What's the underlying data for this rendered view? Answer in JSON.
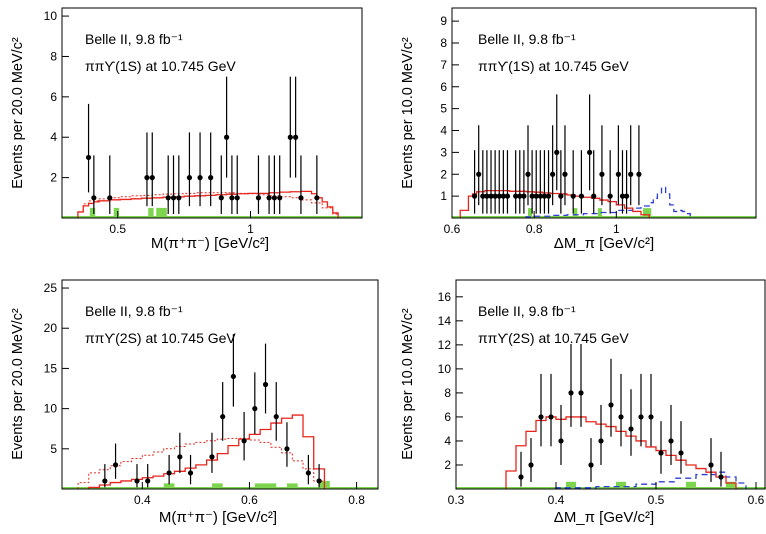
{
  "colors": {
    "axis": "#000000",
    "data": "#000000",
    "fit": "#e8251c",
    "dotted": "#e8251c",
    "dashed": "#2b3fd6",
    "bkg": "#7dd44f"
  },
  "chart_data": [
    {
      "id": "p1",
      "type": "histogram",
      "xlim": [
        0.29,
        1.42
      ],
      "ylim": [
        0,
        10.4
      ],
      "xticks": [
        0.5,
        1
      ],
      "xtick_labels": [
        "0.5",
        "1"
      ],
      "yticks": [
        2,
        4,
        6,
        8,
        10
      ],
      "ytick_labels": [
        "2",
        "4",
        "6",
        "8",
        "10"
      ],
      "xlabel": "M(π⁺π⁻) [GeV/c²]",
      "ylabel": "Events per 20.0 MeV/c²",
      "annotations": [
        "Belle II, 9.8 fb⁻¹",
        "ππϒ(1S) at 10.745 GeV"
      ],
      "data_points": [
        {
          "x": 0.39,
          "y": 3
        },
        {
          "x": 0.41,
          "y": 1
        },
        {
          "x": 0.47,
          "y": 1
        },
        {
          "x": 0.61,
          "y": 2
        },
        {
          "x": 0.63,
          "y": 2
        },
        {
          "x": 0.69,
          "y": 1
        },
        {
          "x": 0.71,
          "y": 1
        },
        {
          "x": 0.73,
          "y": 1
        },
        {
          "x": 0.77,
          "y": 2
        },
        {
          "x": 0.81,
          "y": 2
        },
        {
          "x": 0.85,
          "y": 2
        },
        {
          "x": 0.89,
          "y": 1
        },
        {
          "x": 0.91,
          "y": 4
        },
        {
          "x": 0.93,
          "y": 1
        },
        {
          "x": 0.95,
          "y": 1
        },
        {
          "x": 1.03,
          "y": 1
        },
        {
          "x": 1.07,
          "y": 1
        },
        {
          "x": 1.09,
          "y": 1
        },
        {
          "x": 1.11,
          "y": 1
        },
        {
          "x": 1.15,
          "y": 4
        },
        {
          "x": 1.17,
          "y": 4
        },
        {
          "x": 1.19,
          "y": 1
        },
        {
          "x": 1.25,
          "y": 1
        }
      ],
      "fit_step": {
        "edges": [
          0.35,
          0.37,
          0.39,
          0.41,
          0.43,
          0.47,
          0.51,
          0.55,
          0.59,
          0.63,
          0.67,
          0.71,
          0.75,
          0.79,
          0.83,
          0.87,
          0.91,
          0.95,
          0.99,
          1.03,
          1.07,
          1.11,
          1.15,
          1.19,
          1.23,
          1.25,
          1.27,
          1.29,
          1.31,
          1.33
        ],
        "values": [
          0.3,
          0.6,
          0.72,
          0.8,
          0.85,
          0.9,
          0.92,
          0.95,
          0.98,
          1.0,
          1.03,
          1.05,
          1.08,
          1.1,
          1.12,
          1.15,
          1.18,
          1.2,
          1.22,
          1.22,
          1.25,
          1.28,
          1.3,
          1.32,
          1.2,
          1.0,
          0.8,
          0.55,
          0.25
        ]
      },
      "dotted_step": {
        "edges": [
          0.35,
          0.37,
          0.39,
          0.43,
          0.47,
          0.51,
          0.55,
          0.59,
          0.63,
          0.67,
          0.71,
          0.75,
          0.79,
          0.83,
          0.87,
          0.91,
          0.95,
          0.99,
          1.03,
          1.07,
          1.11,
          1.15,
          1.19,
          1.23,
          1.27,
          1.31,
          1.33
        ],
        "values": [
          0.3,
          0.7,
          0.85,
          0.95,
          1.0,
          1.05,
          1.1,
          1.12,
          1.15,
          1.18,
          1.2,
          1.22,
          1.25,
          1.25,
          1.25,
          1.25,
          1.22,
          1.2,
          1.15,
          1.1,
          1.05,
          1.0,
          0.9,
          0.75,
          0.5,
          0.2
        ]
      },
      "bkg_boxes": [
        {
          "x0": 0.395,
          "x1": 0.415,
          "y": 0.5
        },
        {
          "x0": 0.485,
          "x1": 0.505,
          "y": 0.5
        },
        {
          "x0": 0.615,
          "x1": 0.635,
          "y": 0.5
        },
        {
          "x0": 0.645,
          "x1": 0.685,
          "y": 0.5
        }
      ]
    },
    {
      "id": "p2",
      "type": "histogram",
      "xlim": [
        0.6,
        1.34
      ],
      "ylim": [
        0,
        9.6
      ],
      "xticks": [
        0.6,
        0.8,
        1
      ],
      "xtick_labels": [
        "0.6",
        "0.8",
        "1"
      ],
      "yticks": [
        1,
        2,
        3,
        4,
        5,
        6,
        7,
        8,
        9
      ],
      "ytick_labels": [
        "1",
        "2",
        "3",
        "4",
        "5",
        "6",
        "7",
        "8",
        "9"
      ],
      "xlabel": "ΔM_π [GeV/c²]",
      "ylabel": "Events per 10.0 MeV/c²",
      "annotations": [
        "Belle II, 9.8 fb⁻¹",
        "ππϒ(1S) at 10.745 GeV"
      ],
      "data_points": [
        {
          "x": 0.655,
          "y": 1
        },
        {
          "x": 0.665,
          "y": 2
        },
        {
          "x": 0.675,
          "y": 1
        },
        {
          "x": 0.685,
          "y": 1
        },
        {
          "x": 0.695,
          "y": 1
        },
        {
          "x": 0.705,
          "y": 1
        },
        {
          "x": 0.715,
          "y": 1
        },
        {
          "x": 0.725,
          "y": 1
        },
        {
          "x": 0.735,
          "y": 1
        },
        {
          "x": 0.755,
          "y": 1
        },
        {
          "x": 0.765,
          "y": 1
        },
        {
          "x": 0.775,
          "y": 1
        },
        {
          "x": 0.785,
          "y": 2
        },
        {
          "x": 0.795,
          "y": 1
        },
        {
          "x": 0.805,
          "y": 1
        },
        {
          "x": 0.815,
          "y": 1
        },
        {
          "x": 0.825,
          "y": 1
        },
        {
          "x": 0.835,
          "y": 1
        },
        {
          "x": 0.845,
          "y": 2
        },
        {
          "x": 0.855,
          "y": 3
        },
        {
          "x": 0.865,
          "y": 1
        },
        {
          "x": 0.875,
          "y": 2
        },
        {
          "x": 0.895,
          "y": 1
        },
        {
          "x": 0.915,
          "y": 1
        },
        {
          "x": 0.935,
          "y": 3
        },
        {
          "x": 0.945,
          "y": 1
        },
        {
          "x": 0.965,
          "y": 2
        },
        {
          "x": 0.985,
          "y": 1
        },
        {
          "x": 1.005,
          "y": 2
        },
        {
          "x": 1.015,
          "y": 1
        },
        {
          "x": 1.025,
          "y": 1
        },
        {
          "x": 1.035,
          "y": 2
        },
        {
          "x": 1.055,
          "y": 2
        }
      ],
      "fit_step": {
        "edges": [
          0.62,
          0.64,
          0.65,
          0.66,
          0.68,
          0.7,
          0.72,
          0.74,
          0.76,
          0.78,
          0.8,
          0.82,
          0.84,
          0.86,
          0.88,
          0.9,
          0.92,
          0.94,
          0.96,
          0.98,
          1.0,
          1.02,
          1.04,
          1.06,
          1.08
        ],
        "values": [
          0.35,
          1.0,
          1.1,
          1.2,
          1.25,
          1.25,
          1.25,
          1.22,
          1.22,
          1.2,
          1.18,
          1.15,
          1.12,
          1.1,
          1.05,
          1.0,
          0.95,
          0.9,
          0.82,
          0.75,
          0.6,
          0.45,
          0.3,
          0.15
        ]
      },
      "dashed_step": {
        "edges": [
          0.78,
          0.8,
          0.84,
          0.88,
          0.92,
          0.96,
          1.0,
          1.04,
          1.06,
          1.08,
          1.09,
          1.1,
          1.11,
          1.12,
          1.13,
          1.14,
          1.15,
          1.16,
          1.17,
          1.18
        ],
        "values": [
          0.05,
          0.08,
          0.12,
          0.15,
          0.2,
          0.25,
          0.35,
          0.45,
          0.55,
          0.7,
          0.9,
          1.15,
          1.4,
          1.1,
          0.6,
          0.3,
          0.35,
          0.3,
          0.2
        ]
      },
      "bkg_boxes": [
        {
          "x0": 0.785,
          "x1": 0.795,
          "y": 0.45
        },
        {
          "x0": 0.895,
          "x1": 0.905,
          "y": 0.45
        },
        {
          "x0": 0.955,
          "x1": 0.965,
          "y": 0.45
        },
        {
          "x0": 1.065,
          "x1": 1.085,
          "y": 0.45
        }
      ]
    },
    {
      "id": "p3",
      "type": "histogram",
      "xlim": [
        0.25,
        0.84
      ],
      "ylim": [
        0,
        26
      ],
      "xticks": [
        0.4,
        0.6,
        0.8
      ],
      "xtick_labels": [
        "0.4",
        "0.6",
        "0.8"
      ],
      "yticks": [
        5,
        10,
        15,
        20,
        25
      ],
      "ytick_labels": [
        "5",
        "10",
        "15",
        "20",
        "25"
      ],
      "xlabel": "M(π⁺π⁻) [GeV/c²]",
      "ylabel": "Events per 20.0 MeV/c²",
      "annotations": [
        "Belle II, 9.8 fb⁻¹",
        "ππϒ(2S) at 10.745 GeV"
      ],
      "data_points": [
        {
          "x": 0.33,
          "y": 1
        },
        {
          "x": 0.35,
          "y": 3
        },
        {
          "x": 0.39,
          "y": 1
        },
        {
          "x": 0.41,
          "y": 1
        },
        {
          "x": 0.45,
          "y": 2
        },
        {
          "x": 0.47,
          "y": 4
        },
        {
          "x": 0.49,
          "y": 2
        },
        {
          "x": 0.53,
          "y": 4
        },
        {
          "x": 0.55,
          "y": 9
        },
        {
          "x": 0.57,
          "y": 14
        },
        {
          "x": 0.59,
          "y": 6
        },
        {
          "x": 0.61,
          "y": 10
        },
        {
          "x": 0.63,
          "y": 13
        },
        {
          "x": 0.65,
          "y": 9
        },
        {
          "x": 0.67,
          "y": 5
        },
        {
          "x": 0.71,
          "y": 2
        },
        {
          "x": 0.73,
          "y": 1
        }
      ],
      "fit_step": {
        "edges": [
          0.3,
          0.32,
          0.34,
          0.36,
          0.38,
          0.4,
          0.42,
          0.44,
          0.46,
          0.48,
          0.5,
          0.52,
          0.54,
          0.56,
          0.58,
          0.6,
          0.62,
          0.64,
          0.66,
          0.68,
          0.7,
          0.72,
          0.74
        ],
        "values": [
          0.2,
          0.5,
          0.8,
          1.0,
          1.2,
          1.4,
          1.6,
          1.9,
          2.2,
          2.6,
          3.0,
          3.6,
          4.4,
          5.4,
          6.2,
          6.8,
          7.4,
          8.2,
          8.8,
          9.2,
          6.5,
          2.5
        ]
      },
      "dotted_step": {
        "edges": [
          0.28,
          0.3,
          0.32,
          0.34,
          0.36,
          0.38,
          0.4,
          0.42,
          0.44,
          0.46,
          0.48,
          0.5,
          0.52,
          0.54,
          0.56,
          0.58,
          0.6,
          0.62,
          0.64,
          0.66,
          0.68,
          0.7,
          0.72,
          0.74
        ],
        "values": [
          0.8,
          2.0,
          2.4,
          2.9,
          3.4,
          3.8,
          4.2,
          4.6,
          5.0,
          5.3,
          5.6,
          5.8,
          6.0,
          6.2,
          6.3,
          6.3,
          6.1,
          5.8,
          5.2,
          4.5,
          3.5,
          2.5,
          1.0
        ]
      },
      "bkg_boxes": [
        {
          "x0": 0.44,
          "x1": 0.46,
          "y": 0.7
        },
        {
          "x0": 0.53,
          "x1": 0.55,
          "y": 0.7
        },
        {
          "x0": 0.61,
          "x1": 0.65,
          "y": 0.7
        },
        {
          "x0": 0.67,
          "x1": 0.69,
          "y": 0.7
        },
        {
          "x0": 0.73,
          "x1": 0.75,
          "y": 1.0
        }
      ]
    },
    {
      "id": "p4",
      "type": "histogram",
      "xlim": [
        0.3,
        0.61
      ],
      "ylim": [
        0,
        17.4
      ],
      "xticks": [
        0.3,
        0.4,
        0.5,
        0.6
      ],
      "xtick_labels": [
        "0.3",
        "0.4",
        "0.5",
        "0.6"
      ],
      "yticks": [
        2,
        4,
        6,
        8,
        10,
        12,
        14,
        16
      ],
      "ytick_labels": [
        "2",
        "4",
        "6",
        "8",
        "10",
        "12",
        "14",
        "16"
      ],
      "xlabel": "ΔM_π [GeV/c²]",
      "ylabel": "Events per 10.0 MeV/c²",
      "annotations": [
        "Belle II, 9.8 fb⁻¹",
        "ππϒ(2S) at 10.745 GeV"
      ],
      "data_points": [
        {
          "x": 0.365,
          "y": 1
        },
        {
          "x": 0.375,
          "y": 2
        },
        {
          "x": 0.385,
          "y": 6
        },
        {
          "x": 0.395,
          "y": 6
        },
        {
          "x": 0.405,
          "y": 4
        },
        {
          "x": 0.415,
          "y": 8
        },
        {
          "x": 0.425,
          "y": 8
        },
        {
          "x": 0.435,
          "y": 2
        },
        {
          "x": 0.445,
          "y": 4
        },
        {
          "x": 0.455,
          "y": 7
        },
        {
          "x": 0.465,
          "y": 6
        },
        {
          "x": 0.475,
          "y": 5
        },
        {
          "x": 0.485,
          "y": 6
        },
        {
          "x": 0.495,
          "y": 6
        },
        {
          "x": 0.505,
          "y": 3
        },
        {
          "x": 0.515,
          "y": 4
        },
        {
          "x": 0.525,
          "y": 3
        },
        {
          "x": 0.555,
          "y": 2
        },
        {
          "x": 0.565,
          "y": 1
        }
      ],
      "fit_step": {
        "edges": [
          0.35,
          0.36,
          0.37,
          0.38,
          0.39,
          0.4,
          0.41,
          0.42,
          0.43,
          0.44,
          0.45,
          0.46,
          0.47,
          0.48,
          0.49,
          0.5,
          0.51,
          0.52,
          0.53,
          0.54,
          0.55,
          0.56,
          0.57,
          0.58
        ],
        "values": [
          1.5,
          3.6,
          4.8,
          5.7,
          6.0,
          5.8,
          6.0,
          6.0,
          5.6,
          5.4,
          5.2,
          4.8,
          4.4,
          4.0,
          3.5,
          3.2,
          2.8,
          2.4,
          2.0,
          1.7,
          1.4,
          1.0,
          0.5
        ]
      },
      "dashed_step": {
        "edges": [
          0.4,
          0.44,
          0.48,
          0.5,
          0.52,
          0.54,
          0.56,
          0.57,
          0.58,
          0.59
        ],
        "values": [
          0.1,
          0.2,
          0.4,
          0.6,
          0.9,
          1.2,
          1.4,
          1.0,
          0.5
        ]
      },
      "bkg_boxes": [
        {
          "x0": 0.41,
          "x1": 0.42,
          "y": 0.6
        },
        {
          "x0": 0.46,
          "x1": 0.47,
          "y": 0.6
        },
        {
          "x0": 0.53,
          "x1": 0.54,
          "y": 0.6
        },
        {
          "x0": 0.57,
          "x1": 0.58,
          "y": 0.6
        }
      ]
    }
  ]
}
